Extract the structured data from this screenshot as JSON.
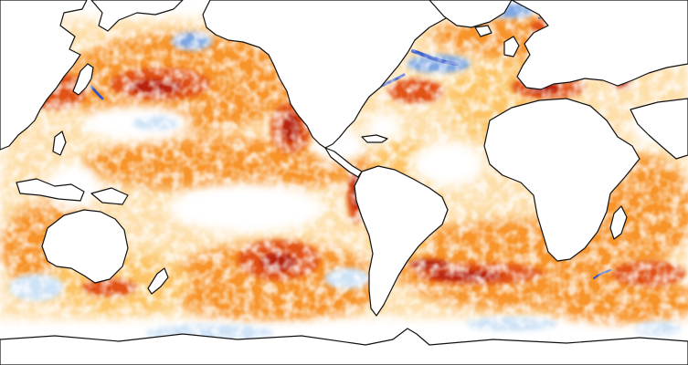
{
  "map": {
    "projection": "equirectangular-pacific-centered",
    "variable": "sea-surface-temperature-anomaly",
    "palette": {
      "strong_cold": "#2f55c7",
      "cold": "#7fa8e4",
      "mild_cold": "#cfe3f6",
      "neutral": "#ffffff",
      "mild_warm": "#fcc466",
      "warm": "#f7942c",
      "hot": "#e25216",
      "very_hot": "#b5200a",
      "land": "#ffffff",
      "coastline": "#111111"
    }
  }
}
